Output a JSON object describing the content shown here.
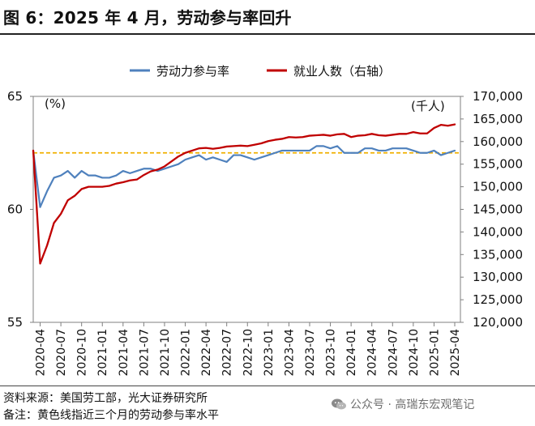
{
  "title": "图 6：2025 年 4 月，劳动参与率回升",
  "source": "资料来源：美国劳工部，光大证券研究所",
  "note": "备注：黄色线指近三个月的劳动参与率水平",
  "watermark": {
    "text": "公众号 · 高瑞东宏观笔记",
    "icon": "wechat-icon"
  },
  "chart_data": {
    "type": "line",
    "left_unit": "(%)",
    "right_unit": "(千人)",
    "left_axis": {
      "min": 55,
      "max": 65,
      "ticks": [
        55,
        60,
        65
      ]
    },
    "right_axis": {
      "min": 120000,
      "max": 170000,
      "ticks": [
        120000,
        125000,
        130000,
        135000,
        140000,
        145000,
        150000,
        155000,
        160000,
        165000,
        170000
      ],
      "tick_labels": [
        "120,000",
        "125,000",
        "130,000",
        "135,000",
        "140,000",
        "145,000",
        "150,000",
        "155,000",
        "160,000",
        "165,000",
        "170,000"
      ]
    },
    "x_tick_labels": [
      "2020-04",
      "2020-07",
      "2020-10",
      "2021-01",
      "2021-04",
      "2021-07",
      "2021-10",
      "2022-01",
      "2022-04",
      "2022-07",
      "2022-10",
      "2023-01",
      "2023-04",
      "2023-07",
      "2023-10",
      "2024-01",
      "2024-04",
      "2024-07",
      "2024-10",
      "2025-01",
      "2025-04"
    ],
    "months": [
      "2020-03",
      "2020-04",
      "2020-05",
      "2020-06",
      "2020-07",
      "2020-08",
      "2020-09",
      "2020-10",
      "2020-11",
      "2020-12",
      "2021-01",
      "2021-02",
      "2021-03",
      "2021-04",
      "2021-05",
      "2021-06",
      "2021-07",
      "2021-08",
      "2021-09",
      "2021-10",
      "2021-11",
      "2021-12",
      "2022-01",
      "2022-02",
      "2022-03",
      "2022-04",
      "2022-05",
      "2022-06",
      "2022-07",
      "2022-08",
      "2022-09",
      "2022-10",
      "2022-11",
      "2022-12",
      "2023-01",
      "2023-02",
      "2023-03",
      "2023-04",
      "2023-05",
      "2023-06",
      "2023-07",
      "2023-08",
      "2023-09",
      "2023-10",
      "2023-11",
      "2023-12",
      "2024-01",
      "2024-02",
      "2024-03",
      "2024-04",
      "2024-05",
      "2024-06",
      "2024-07",
      "2024-08",
      "2024-09",
      "2024-10",
      "2024-11",
      "2024-12",
      "2025-01",
      "2025-02",
      "2025-03",
      "2025-04"
    ],
    "series": [
      {
        "name": "劳动力参与率",
        "axis": "left",
        "color": "#4f81bd",
        "values": [
          62.6,
          60.1,
          60.8,
          61.4,
          61.5,
          61.7,
          61.4,
          61.7,
          61.5,
          61.5,
          61.4,
          61.4,
          61.5,
          61.7,
          61.6,
          61.7,
          61.8,
          61.8,
          61.7,
          61.8,
          61.9,
          62.0,
          62.2,
          62.3,
          62.4,
          62.2,
          62.3,
          62.2,
          62.1,
          62.4,
          62.4,
          62.3,
          62.2,
          62.3,
          62.4,
          62.5,
          62.6,
          62.6,
          62.6,
          62.6,
          62.6,
          62.8,
          62.8,
          62.7,
          62.8,
          62.5,
          62.5,
          62.5,
          62.7,
          62.7,
          62.6,
          62.6,
          62.7,
          62.7,
          62.7,
          62.6,
          62.5,
          62.5,
          62.6,
          62.4,
          62.5,
          62.6
        ]
      },
      {
        "name": "就业人数（右轴）",
        "axis": "right",
        "color": "#c00000",
        "values": [
          158000,
          133000,
          137000,
          142000,
          144000,
          147000,
          148000,
          149500,
          150000,
          150000,
          150000,
          150200,
          150700,
          151000,
          151400,
          151600,
          152600,
          153400,
          153800,
          154500,
          155600,
          156700,
          157500,
          158000,
          158500,
          158600,
          158400,
          158600,
          158900,
          159000,
          159100,
          159000,
          159300,
          159600,
          160100,
          160400,
          160600,
          161000,
          160900,
          161000,
          161300,
          161400,
          161500,
          161300,
          161600,
          161700,
          161000,
          161300,
          161400,
          161700,
          161400,
          161300,
          161500,
          161700,
          161700,
          162100,
          161800,
          161800,
          163000,
          163700,
          163500,
          163800
        ]
      },
      {
        "name": "近三个月劳动参与率水平",
        "axis": "left",
        "color": "#f0b000",
        "dashed": true,
        "values": [
          62.5,
          62.5
        ]
      }
    ]
  }
}
